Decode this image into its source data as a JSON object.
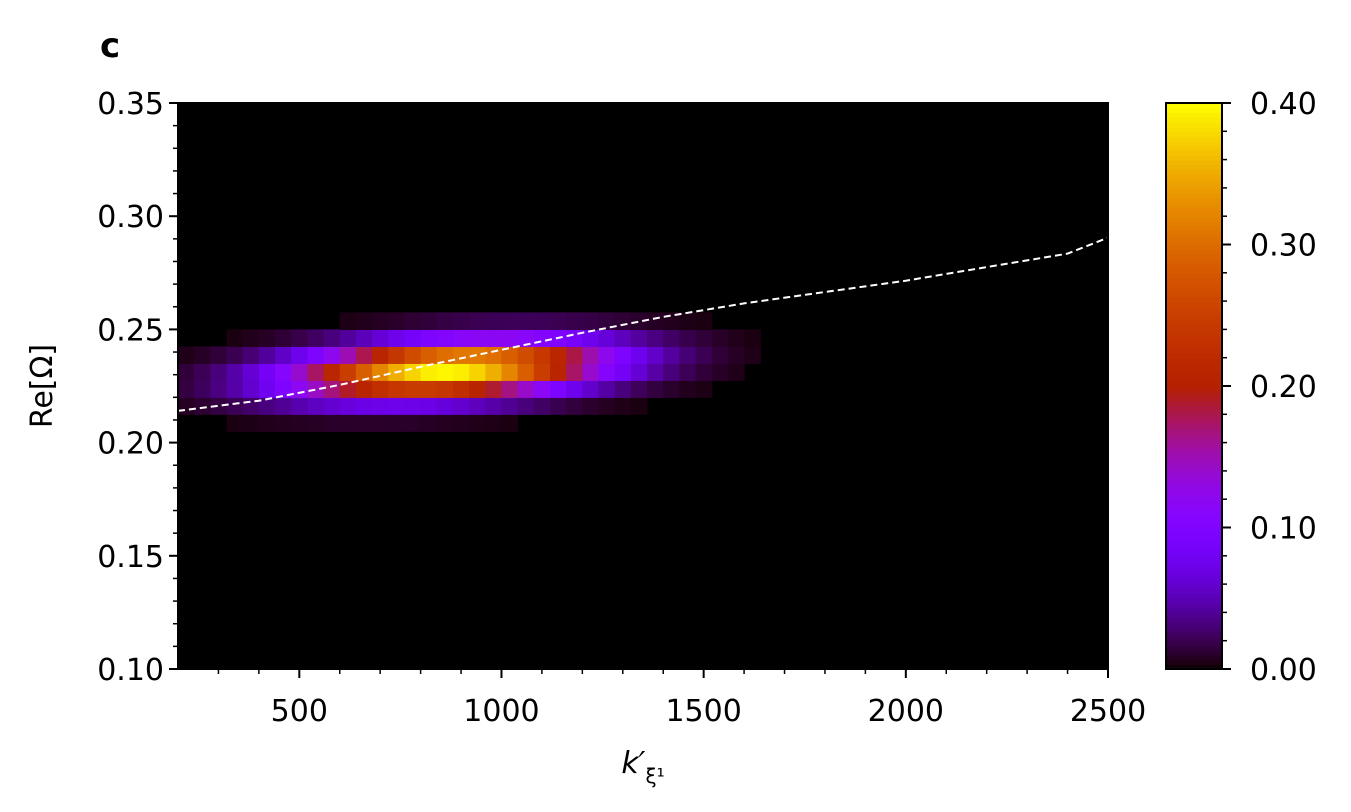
{
  "panel_label": "c",
  "chart_data": {
    "type": "heatmap",
    "title": "",
    "xlabel": "k′",
    "xlabel_subscript": "ξ¹",
    "ylabel": "Re[Ω]",
    "xlim": [
      200,
      2500
    ],
    "ylim": [
      0.1,
      0.35
    ],
    "x_ticks": [
      500,
      1000,
      1500,
      2000,
      2500
    ],
    "x_tick_labels": [
      "500",
      "1000",
      "1500",
      "2000",
      "2500"
    ],
    "y_ticks": [
      0.1,
      0.15,
      0.2,
      0.25,
      0.3,
      0.35
    ],
    "y_tick_labels": [
      "0.10",
      "0.15",
      "0.20",
      "0.25",
      "0.30",
      "0.35"
    ],
    "grid": false,
    "colormap": "gnuplot",
    "colorbar": {
      "range": [
        0.0,
        0.4
      ],
      "ticks": [
        0.0,
        0.1,
        0.2,
        0.3,
        0.4
      ],
      "tick_labels": [
        "0.00",
        "0.10",
        "0.20",
        "0.30",
        "0.40"
      ]
    },
    "bins": {
      "x_bin_width": 40,
      "y_bin_width": 0.0075,
      "density_model": {
        "center_x": 870,
        "center_y": 0.2325,
        "peak": 0.4,
        "sigma_x": 260,
        "sigma_y": 0.0085,
        "skew_per_x": 9.5e-06
      }
    },
    "series": [
      {
        "name": "",
        "style": "dashed",
        "color": "#ffffff",
        "x": [
          200,
          400,
          600,
          800,
          1000,
          1200,
          1400,
          1600,
          1800,
          2000,
          2200,
          2400,
          2500
        ],
        "y": [
          0.214,
          0.2185,
          0.2255,
          0.2335,
          0.241,
          0.2485,
          0.2555,
          0.2615,
          0.2665,
          0.2715,
          0.2775,
          0.2835,
          0.2905
        ]
      }
    ]
  }
}
